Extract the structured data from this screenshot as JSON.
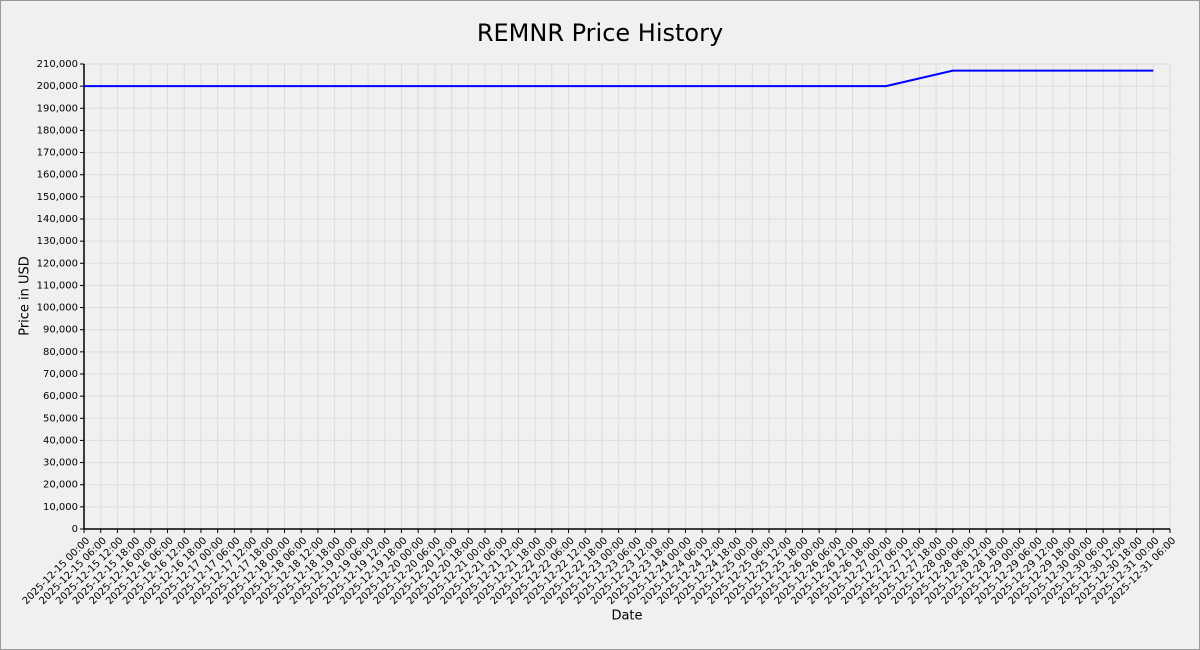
{
  "chart_data": {
    "type": "line",
    "title": "REMNR Price History",
    "x_label": "Date",
    "y_label": "Price in USD",
    "x": [
      "2025-12-15 00:00",
      "2025-12-16 00:00",
      "2025-12-17 00:00",
      "2025-12-18 00:00",
      "2025-12-19 00:00",
      "2025-12-20 00:00",
      "2025-12-21 00:00",
      "2025-12-22 00:00",
      "2025-12-23 00:00",
      "2025-12-24 00:00",
      "2025-12-25 00:00",
      "2025-12-26 00:00",
      "2025-12-27 00:00",
      "2025-12-28 00:00",
      "2025-12-29 00:00",
      "2025-12-30 00:00",
      "2025-12-31 00:00"
    ],
    "values": [
      200000,
      200000,
      200000,
      200000,
      200000,
      200000,
      200000,
      200000,
      200000,
      200000,
      200000,
      200000,
      200000,
      207000,
      207000,
      207000,
      207000
    ],
    "color": "#0000ff",
    "xlim": [
      "2025-12-15 00:00",
      "2025-12-31 06:00"
    ],
    "xticks": [
      "2025-12-15 00:00",
      "2025-12-15 06:00",
      "2025-12-15 12:00",
      "2025-12-15 18:00",
      "2025-12-16 00:00",
      "2025-12-16 06:00",
      "2025-12-16 12:00",
      "2025-12-16 18:00",
      "2025-12-17 00:00",
      "2025-12-17 06:00",
      "2025-12-17 12:00",
      "2025-12-17 18:00",
      "2025-12-18 00:00",
      "2025-12-18 06:00",
      "2025-12-18 12:00",
      "2025-12-18 18:00",
      "2025-12-19 00:00",
      "2025-12-19 06:00",
      "2025-12-19 12:00",
      "2025-12-19 18:00",
      "2025-12-20 00:00",
      "2025-12-20 06:00",
      "2025-12-20 12:00",
      "2025-12-20 18:00",
      "2025-12-21 00:00",
      "2025-12-21 06:00",
      "2025-12-21 12:00",
      "2025-12-21 18:00",
      "2025-12-22 00:00",
      "2025-12-22 06:00",
      "2025-12-22 12:00",
      "2025-12-22 18:00",
      "2025-12-23 00:00",
      "2025-12-23 06:00",
      "2025-12-23 12:00",
      "2025-12-23 18:00",
      "2025-12-24 00:00",
      "2025-12-24 06:00",
      "2025-12-24 12:00",
      "2025-12-24 18:00",
      "2025-12-25 00:00",
      "2025-12-25 06:00",
      "2025-12-25 12:00",
      "2025-12-25 18:00",
      "2025-12-26 00:00",
      "2025-12-26 06:00",
      "2025-12-26 12:00",
      "2025-12-26 18:00",
      "2025-12-27 00:00",
      "2025-12-27 06:00",
      "2025-12-27 12:00",
      "2025-12-27 18:00",
      "2025-12-28 00:00",
      "2025-12-28 06:00",
      "2025-12-28 12:00",
      "2025-12-28 18:00",
      "2025-12-29 00:00",
      "2025-12-29 06:00",
      "2025-12-29 12:00",
      "2025-12-29 18:00",
      "2025-12-30 00:00",
      "2025-12-30 06:00",
      "2025-12-30 12:00",
      "2025-12-30 18:00",
      "2025-12-31 00:00",
      "2025-12-31 06:00"
    ],
    "ylim": [
      0,
      210000
    ],
    "yticks": [
      0,
      {
        "value": 10000,
        "label": "10,000"
      },
      {
        "value": 20000,
        "label": "20,000"
      },
      {
        "value": 30000,
        "label": "30,000"
      },
      {
        "value": 40000,
        "label": "40,000"
      },
      {
        "value": 50000,
        "label": "50,000"
      },
      {
        "value": 60000,
        "label": "60,000"
      },
      {
        "value": 70000,
        "label": "70,000"
      },
      {
        "value": 80000,
        "label": "80,000"
      },
      {
        "value": 90000,
        "label": "90,000"
      },
      {
        "value": 100000,
        "label": "100,000"
      },
      {
        "value": 110000,
        "label": "110,000"
      },
      {
        "value": 120000,
        "label": "120,000"
      },
      {
        "value": 130000,
        "label": "130,000"
      },
      {
        "value": 140000,
        "label": "140,000"
      },
      {
        "value": 150000,
        "label": "150,000"
      },
      {
        "value": 160000,
        "label": "160,000"
      },
      {
        "value": 170000,
        "label": "170,000"
      },
      {
        "value": 180000,
        "label": "180,000"
      },
      {
        "value": 190000,
        "label": "190,000"
      },
      {
        "value": 200000,
        "label": "200,000"
      },
      {
        "value": 210000,
        "label": "210,000"
      }
    ],
    "grid": true
  }
}
